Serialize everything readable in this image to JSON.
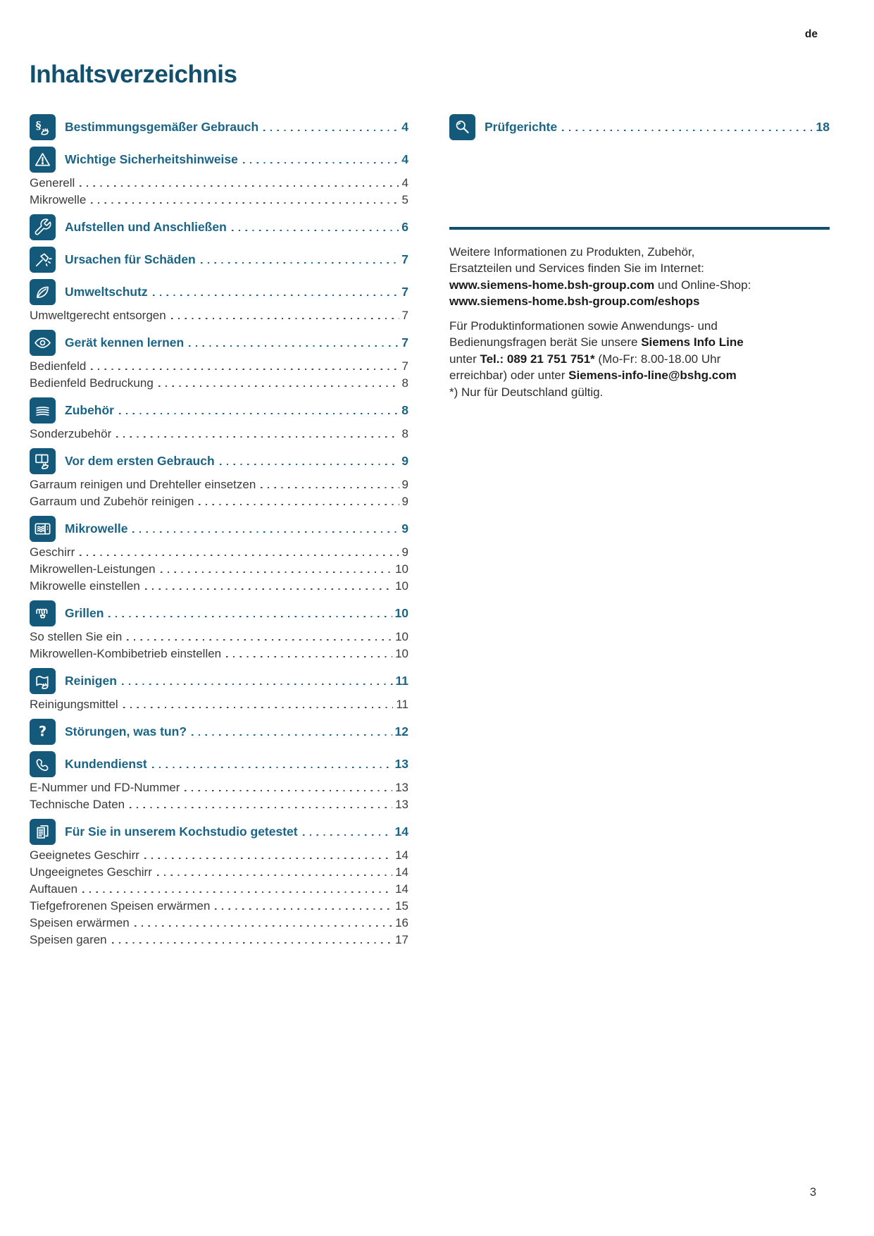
{
  "page": {
    "lang_marker": "de",
    "title": "Inhaltsverzeichnis",
    "page_number": "3"
  },
  "colors": {
    "heading": "#12506e",
    "section": "#1a6486",
    "icon_bg": "#14587a",
    "body": "#3a3a3a",
    "rule": "#12506e"
  },
  "toc_left": [
    {
      "icon": "paragraph-hand-icon",
      "label": "Bestimmungsgemäßer Gebrauch",
      "page": "4",
      "subitems": []
    },
    {
      "icon": "warning-triangle-icon",
      "label": "Wichtige Sicherheitshinweise",
      "page": "4",
      "subitems": [
        {
          "label": "Generell",
          "page": "4"
        },
        {
          "label": "Mikrowelle",
          "page": "5"
        }
      ]
    },
    {
      "icon": "wrench-icon",
      "label": "Aufstellen und Anschließen",
      "page": "6",
      "subitems": []
    },
    {
      "icon": "hammer-icon",
      "label": "Ursachen für Schäden",
      "page": "7",
      "subitems": []
    },
    {
      "icon": "leaf-icon",
      "label": "Umweltschutz",
      "page": "7",
      "subitems": [
        {
          "label": "Umweltgerecht entsorgen",
          "page": "7"
        }
      ]
    },
    {
      "icon": "eye-icon",
      "label": "Gerät kennen lernen",
      "page": "7",
      "subitems": [
        {
          "label": "Bedienfeld",
          "page": "7"
        },
        {
          "label": "Bedienfeld Bedruckung",
          "page": "8"
        }
      ]
    },
    {
      "icon": "layers-icon",
      "label": "Zubehör",
      "page": "8",
      "subitems": [
        {
          "label": "Sonderzubehör",
          "page": "8"
        }
      ]
    },
    {
      "icon": "book-hand-icon",
      "label": "Vor dem ersten Gebrauch",
      "page": "9",
      "subitems": [
        {
          "label": "Garraum reinigen und Drehteller einsetzen",
          "page": "9"
        },
        {
          "label": "Garraum und Zubehör reinigen",
          "page": "9"
        }
      ]
    },
    {
      "icon": "microwave-icon",
      "label": "Mikrowelle",
      "page": "9",
      "subitems": [
        {
          "label": "Geschirr",
          "page": "9"
        },
        {
          "label": "Mikrowellen-Leistungen",
          "page": "10"
        },
        {
          "label": "Mikrowelle einstellen",
          "page": "10"
        }
      ]
    },
    {
      "icon": "grill-element-icon",
      "label": "Grillen",
      "page": "10",
      "subitems": [
        {
          "label": "So stellen Sie ein",
          "page": "10"
        },
        {
          "label": "Mikrowellen-Kombibetrieb einstellen",
          "page": "10"
        }
      ]
    },
    {
      "icon": "cleaning-cloth-icon",
      "label": "Reinigen",
      "page": "11",
      "subitems": [
        {
          "label": "Reinigungsmittel",
          "page": "11"
        }
      ]
    },
    {
      "icon": "question-mark-icon",
      "label": "Störungen, was tun?",
      "page": "12",
      "subitems": []
    },
    {
      "icon": "phone-icon",
      "label": "Kundendienst",
      "page": "13",
      "subitems": [
        {
          "label": "E-Nummer und FD-Nummer",
          "page": "13"
        },
        {
          "label": "Technische Daten",
          "page": "13"
        }
      ]
    },
    {
      "icon": "documents-icon",
      "label": "Für Sie in unserem Kochstudio getestet",
      "page": "14",
      "subitems": [
        {
          "label": "Geeignetes Geschirr",
          "page": "14"
        },
        {
          "label": "Ungeeignetes Geschirr",
          "page": "14"
        },
        {
          "label": "Auftauen",
          "page": "14"
        },
        {
          "label": "Tiefgefrorenen Speisen erwärmen",
          "page": "15"
        },
        {
          "label": "Speisen erwärmen",
          "page": "16"
        },
        {
          "label": "Speisen garen",
          "page": "17"
        }
      ]
    }
  ],
  "toc_right": [
    {
      "icon": "magnifier-icon",
      "label": "Prüfgerichte",
      "page": "18",
      "subitems": []
    }
  ],
  "info_panel": {
    "paragraphs": [
      {
        "runs": [
          {
            "text": "Weitere Informationen zu Produkten, Zubehör,\nErsatzteilen und Services finden Sie im Internet:\n"
          },
          {
            "text": "www.siemens-home.bsh-group.com",
            "bold": true
          },
          {
            "text": " und Online-Shop:\n"
          },
          {
            "text": "www.siemens-home.bsh-group.com/eshops",
            "bold": true
          }
        ]
      },
      {
        "runs": [
          {
            "text": "Für Produktinformationen sowie Anwendungs- und\nBedienungsfragen berät Sie unsere "
          },
          {
            "text": "Siemens Info Line",
            "bold": true
          },
          {
            "text": "\nunter "
          },
          {
            "text": "Tel.: 089 21 751 751*",
            "bold": true
          },
          {
            "text": " (Mo-Fr: 8.00-18.00 Uhr\nerreichbar) oder unter "
          },
          {
            "text": "Siemens-info-line@bshg.com",
            "bold": true
          },
          {
            "text": "\n*) Nur für Deutschland gültig."
          }
        ]
      }
    ]
  }
}
